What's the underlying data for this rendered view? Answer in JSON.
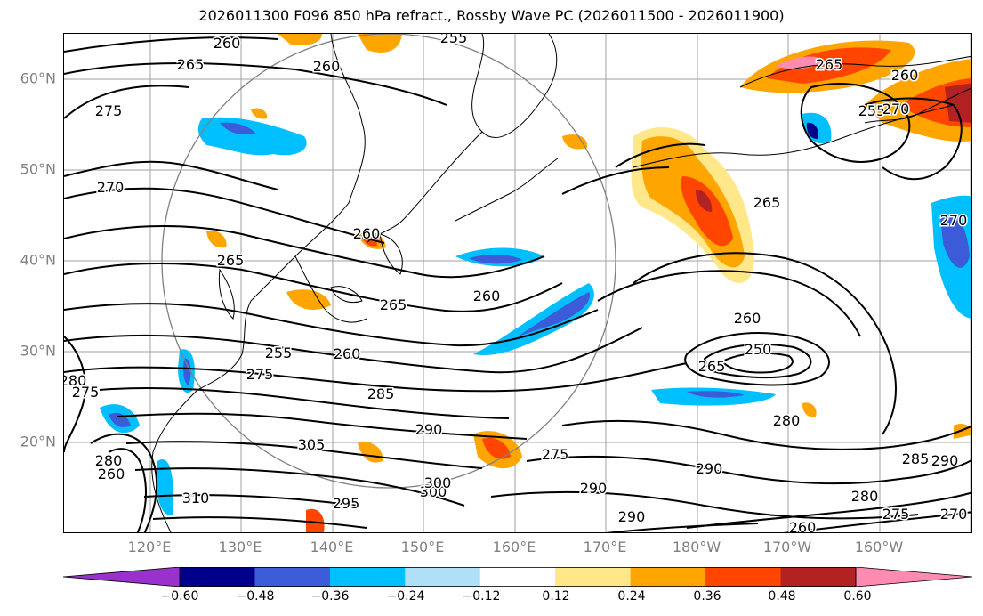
{
  "title": "2026011300 F096 850 hPa refract., Rossby Wave PC (2026011500 - 2026011900)",
  "lat_labels": [
    "60°N",
    "50°N",
    "40°N",
    "30°N",
    "20°N"
  ],
  "lon_labels": [
    "120°E",
    "130°E",
    "140°E",
    "150°E",
    "160°E",
    "170°E",
    "180°W",
    "170°W",
    "160°W"
  ],
  "contour_labels": [
    "260",
    "265",
    "260",
    "275",
    "255",
    "270",
    "265",
    "260",
    "265",
    "265",
    "260",
    "255",
    "260",
    "270",
    "270",
    "265",
    "260",
    "255",
    "250",
    "265",
    "260",
    "275",
    "285",
    "280",
    "275",
    "280",
    "260",
    "300",
    "305",
    "290",
    "280",
    "310",
    "295",
    "300",
    "275",
    "290",
    "290",
    "290",
    "285",
    "290",
    "280",
    "275",
    "270",
    "260"
  ],
  "colorbar": {
    "ticks": [
      "−0.60",
      "−0.48",
      "−0.36",
      "−0.24",
      "−0.12",
      "0.12",
      "0.24",
      "0.36",
      "0.48",
      "0.60"
    ],
    "colors": [
      "#9932cc",
      "#00008b",
      "#3b5bd9",
      "#00bfff",
      "#b0e0f8",
      "#ffffff",
      "#ffe78a",
      "#ffa500",
      "#ff4500",
      "#b22222",
      "#ff8bb0"
    ]
  },
  "colors": {
    "grid": "#a0a0a0",
    "coast": "#000000",
    "contour": "#000000",
    "circle": "#808080"
  }
}
